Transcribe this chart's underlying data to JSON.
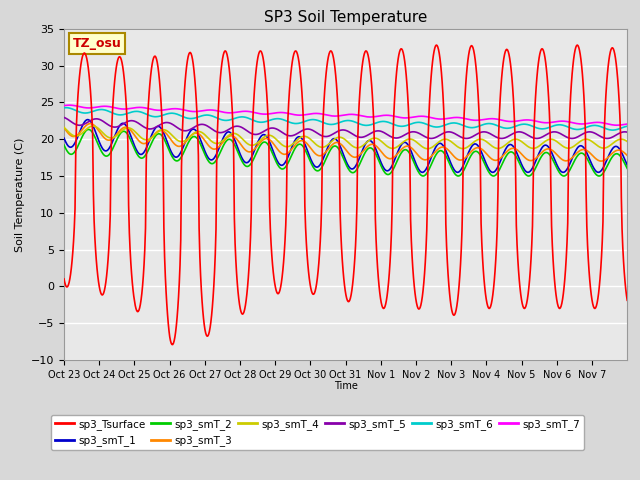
{
  "title": "SP3 Soil Temperature",
  "ylabel": "Soil Temperature (C)",
  "xlabel": "Time",
  "ylim": [
    -10,
    35
  ],
  "annotation": "TZ_osu",
  "fig_facecolor": "#d8d8d8",
  "plot_facecolor": "#e8e8e8",
  "series_colors": {
    "sp3_Tsurface": "#ff0000",
    "sp3_smT_1": "#0000cc",
    "sp3_smT_2": "#00cc00",
    "sp3_smT_3": "#ff8800",
    "sp3_smT_4": "#cccc00",
    "sp3_smT_5": "#8800aa",
    "sp3_smT_6": "#00cccc",
    "sp3_smT_7": "#ff00ff"
  },
  "tick_labels": [
    "Oct 23",
    "Oct 24",
    "Oct 25",
    "Oct 26",
    "Oct 27",
    "Oct 28",
    "Oct 29",
    "Oct 30",
    "Oct 31",
    "Nov 1",
    "Nov 2",
    "Nov 3",
    "Nov 4",
    "Nov 5",
    "Nov 6",
    "Nov 7"
  ],
  "yticks": [
    -10,
    -5,
    0,
    5,
    10,
    15,
    20,
    25,
    30,
    35
  ]
}
